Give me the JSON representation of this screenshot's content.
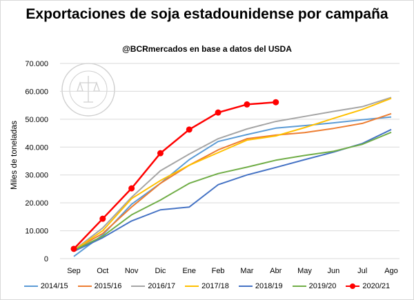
{
  "chart_data": {
    "type": "line",
    "title": "Exportaciones de soja estadounidense por campaña",
    "subtitle": "@BCRmercados en base a datos del USDA",
    "xlabel": "",
    "ylabel": "Miles de toneladas",
    "ylim": [
      0,
      70000
    ],
    "yticks": [
      "0",
      "10.000",
      "20.000",
      "30.000",
      "40.000",
      "50.000",
      "60.000",
      "70.000"
    ],
    "ytick_values": [
      0,
      10000,
      20000,
      30000,
      40000,
      50000,
      60000,
      70000
    ],
    "categories": [
      "Sep",
      "Oct",
      "Nov",
      "Dic",
      "Ene",
      "Feb",
      "Mar",
      "Abr",
      "May",
      "Jun",
      "Jul",
      "Ago"
    ],
    "grid": true,
    "legend_position": "bottom",
    "series": [
      {
        "name": "2014/15",
        "color": "#5b9bd5",
        "markers": false,
        "values": [
          800,
          8500,
          19500,
          27000,
          35500,
          42000,
          44500,
          46800,
          47700,
          48700,
          49800,
          50800
        ]
      },
      {
        "name": "2015/16",
        "color": "#ed7d31",
        "markers": false,
        "values": [
          3200,
          9000,
          18500,
          27000,
          33500,
          39000,
          43000,
          44300,
          45200,
          46700,
          48500,
          52000
        ]
      },
      {
        "name": "2016/17",
        "color": "#a5a5a5",
        "markers": false,
        "values": [
          3000,
          11000,
          22000,
          31500,
          37500,
          43000,
          46500,
          49200,
          51000,
          52800,
          54500,
          57800
        ]
      },
      {
        "name": "2017/18",
        "color": "#ffc000",
        "markers": false,
        "values": [
          3000,
          10000,
          21500,
          28000,
          33500,
          38000,
          42500,
          44000,
          47000,
          50300,
          53500,
          57500
        ]
      },
      {
        "name": "2018/19",
        "color": "#4472c4",
        "markers": false,
        "values": [
          2600,
          7500,
          13500,
          17500,
          18500,
          26500,
          30000,
          32700,
          35500,
          38200,
          41300,
          46300
        ]
      },
      {
        "name": "2019/20",
        "color": "#70ad47",
        "markers": false,
        "values": [
          3000,
          8000,
          15700,
          21000,
          27000,
          30500,
          32800,
          35300,
          37000,
          38500,
          41000,
          45300
        ]
      },
      {
        "name": "2020/21",
        "color": "#ff0000",
        "markers": true,
        "values": [
          3500,
          14300,
          25200,
          37800,
          46300,
          52400,
          55300,
          56100,
          null,
          null,
          null,
          null
        ]
      }
    ]
  },
  "seal": {
    "text": "BOLSA DE COMERCIO DE ROSARIO"
  }
}
